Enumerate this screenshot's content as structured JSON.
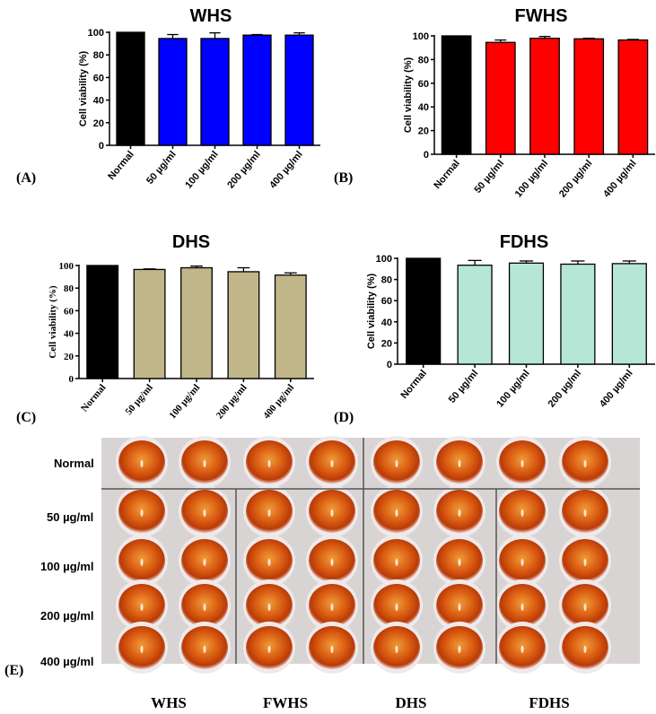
{
  "chart_data": [
    {
      "type": "bar",
      "panel": "(A)",
      "title": "WHS",
      "ylabel": "Cell viability (%)",
      "ylim": [
        0,
        100
      ],
      "yticks": [
        0,
        20,
        40,
        60,
        80,
        100
      ],
      "categories": [
        "Normal",
        "50 µg/ml",
        "100 µg/ml",
        "200 µg/ml",
        "400 µg/ml"
      ],
      "values": [
        100,
        94.5,
        94.5,
        97.5,
        97.5
      ],
      "errors": [
        0,
        3.5,
        5,
        0.5,
        2
      ],
      "colors": [
        "#000000",
        "#0000ff",
        "#0000ff",
        "#0000ff",
        "#0000ff"
      ]
    },
    {
      "type": "bar",
      "panel": "(B)",
      "title": "FWHS",
      "ylabel": "Cell viability (%)",
      "ylim": [
        0,
        100
      ],
      "yticks": [
        0,
        20,
        40,
        60,
        80,
        100
      ],
      "categories": [
        "Normal",
        "50 µg/ml",
        "100 µg/ml",
        "200 µg/ml",
        "400 µg/ml"
      ],
      "values": [
        100,
        94.5,
        98,
        97.5,
        96.5
      ],
      "errors": [
        0,
        2,
        1.5,
        0.5,
        0.5
      ],
      "colors": [
        "#000000",
        "#ff0000",
        "#ff0000",
        "#ff0000",
        "#ff0000"
      ]
    },
    {
      "type": "bar",
      "panel": "(C)",
      "title": "DHS",
      "ylabel": "Cell viability (%)",
      "ylim": [
        0,
        100
      ],
      "yticks": [
        0,
        20,
        40,
        60,
        80,
        100
      ],
      "categories": [
        "Normal",
        "50 µg/ml",
        "100 µg/ml",
        "200 µg/ml",
        "400 µg/ml"
      ],
      "values": [
        100,
        96.5,
        98,
        94.5,
        91.5
      ],
      "errors": [
        0,
        0.5,
        1.5,
        3.5,
        2
      ],
      "colors": [
        "#000000",
        "#c1b58a",
        "#c1b58a",
        "#c1b58a",
        "#c1b58a"
      ]
    },
    {
      "type": "bar",
      "panel": "(D)",
      "title": "FDHS",
      "ylabel": "Cell viability (%)",
      "ylim": [
        0,
        100
      ],
      "yticks": [
        0,
        20,
        40,
        60,
        80,
        100
      ],
      "categories": [
        "Normal",
        "50 µg/ml",
        "100 µg/ml",
        "200 µg/ml",
        "400 µg/ml"
      ],
      "values": [
        100,
        93.5,
        95.5,
        94.5,
        95
      ],
      "errors": [
        0,
        4.5,
        2,
        3,
        2.5
      ],
      "colors": [
        "#000000",
        "#b5e6d6",
        "#b5e6d6",
        "#b5e6d6",
        "#b5e6d6"
      ]
    }
  ],
  "plate": {
    "panel": "(E)",
    "rows": [
      "Normal",
      "50 µg/ml",
      "100 µg/ml",
      "200 µg/ml",
      "400 µg/ml"
    ],
    "columns": [
      "WHS",
      "FWHS",
      "DHS",
      "FDHS"
    ]
  }
}
